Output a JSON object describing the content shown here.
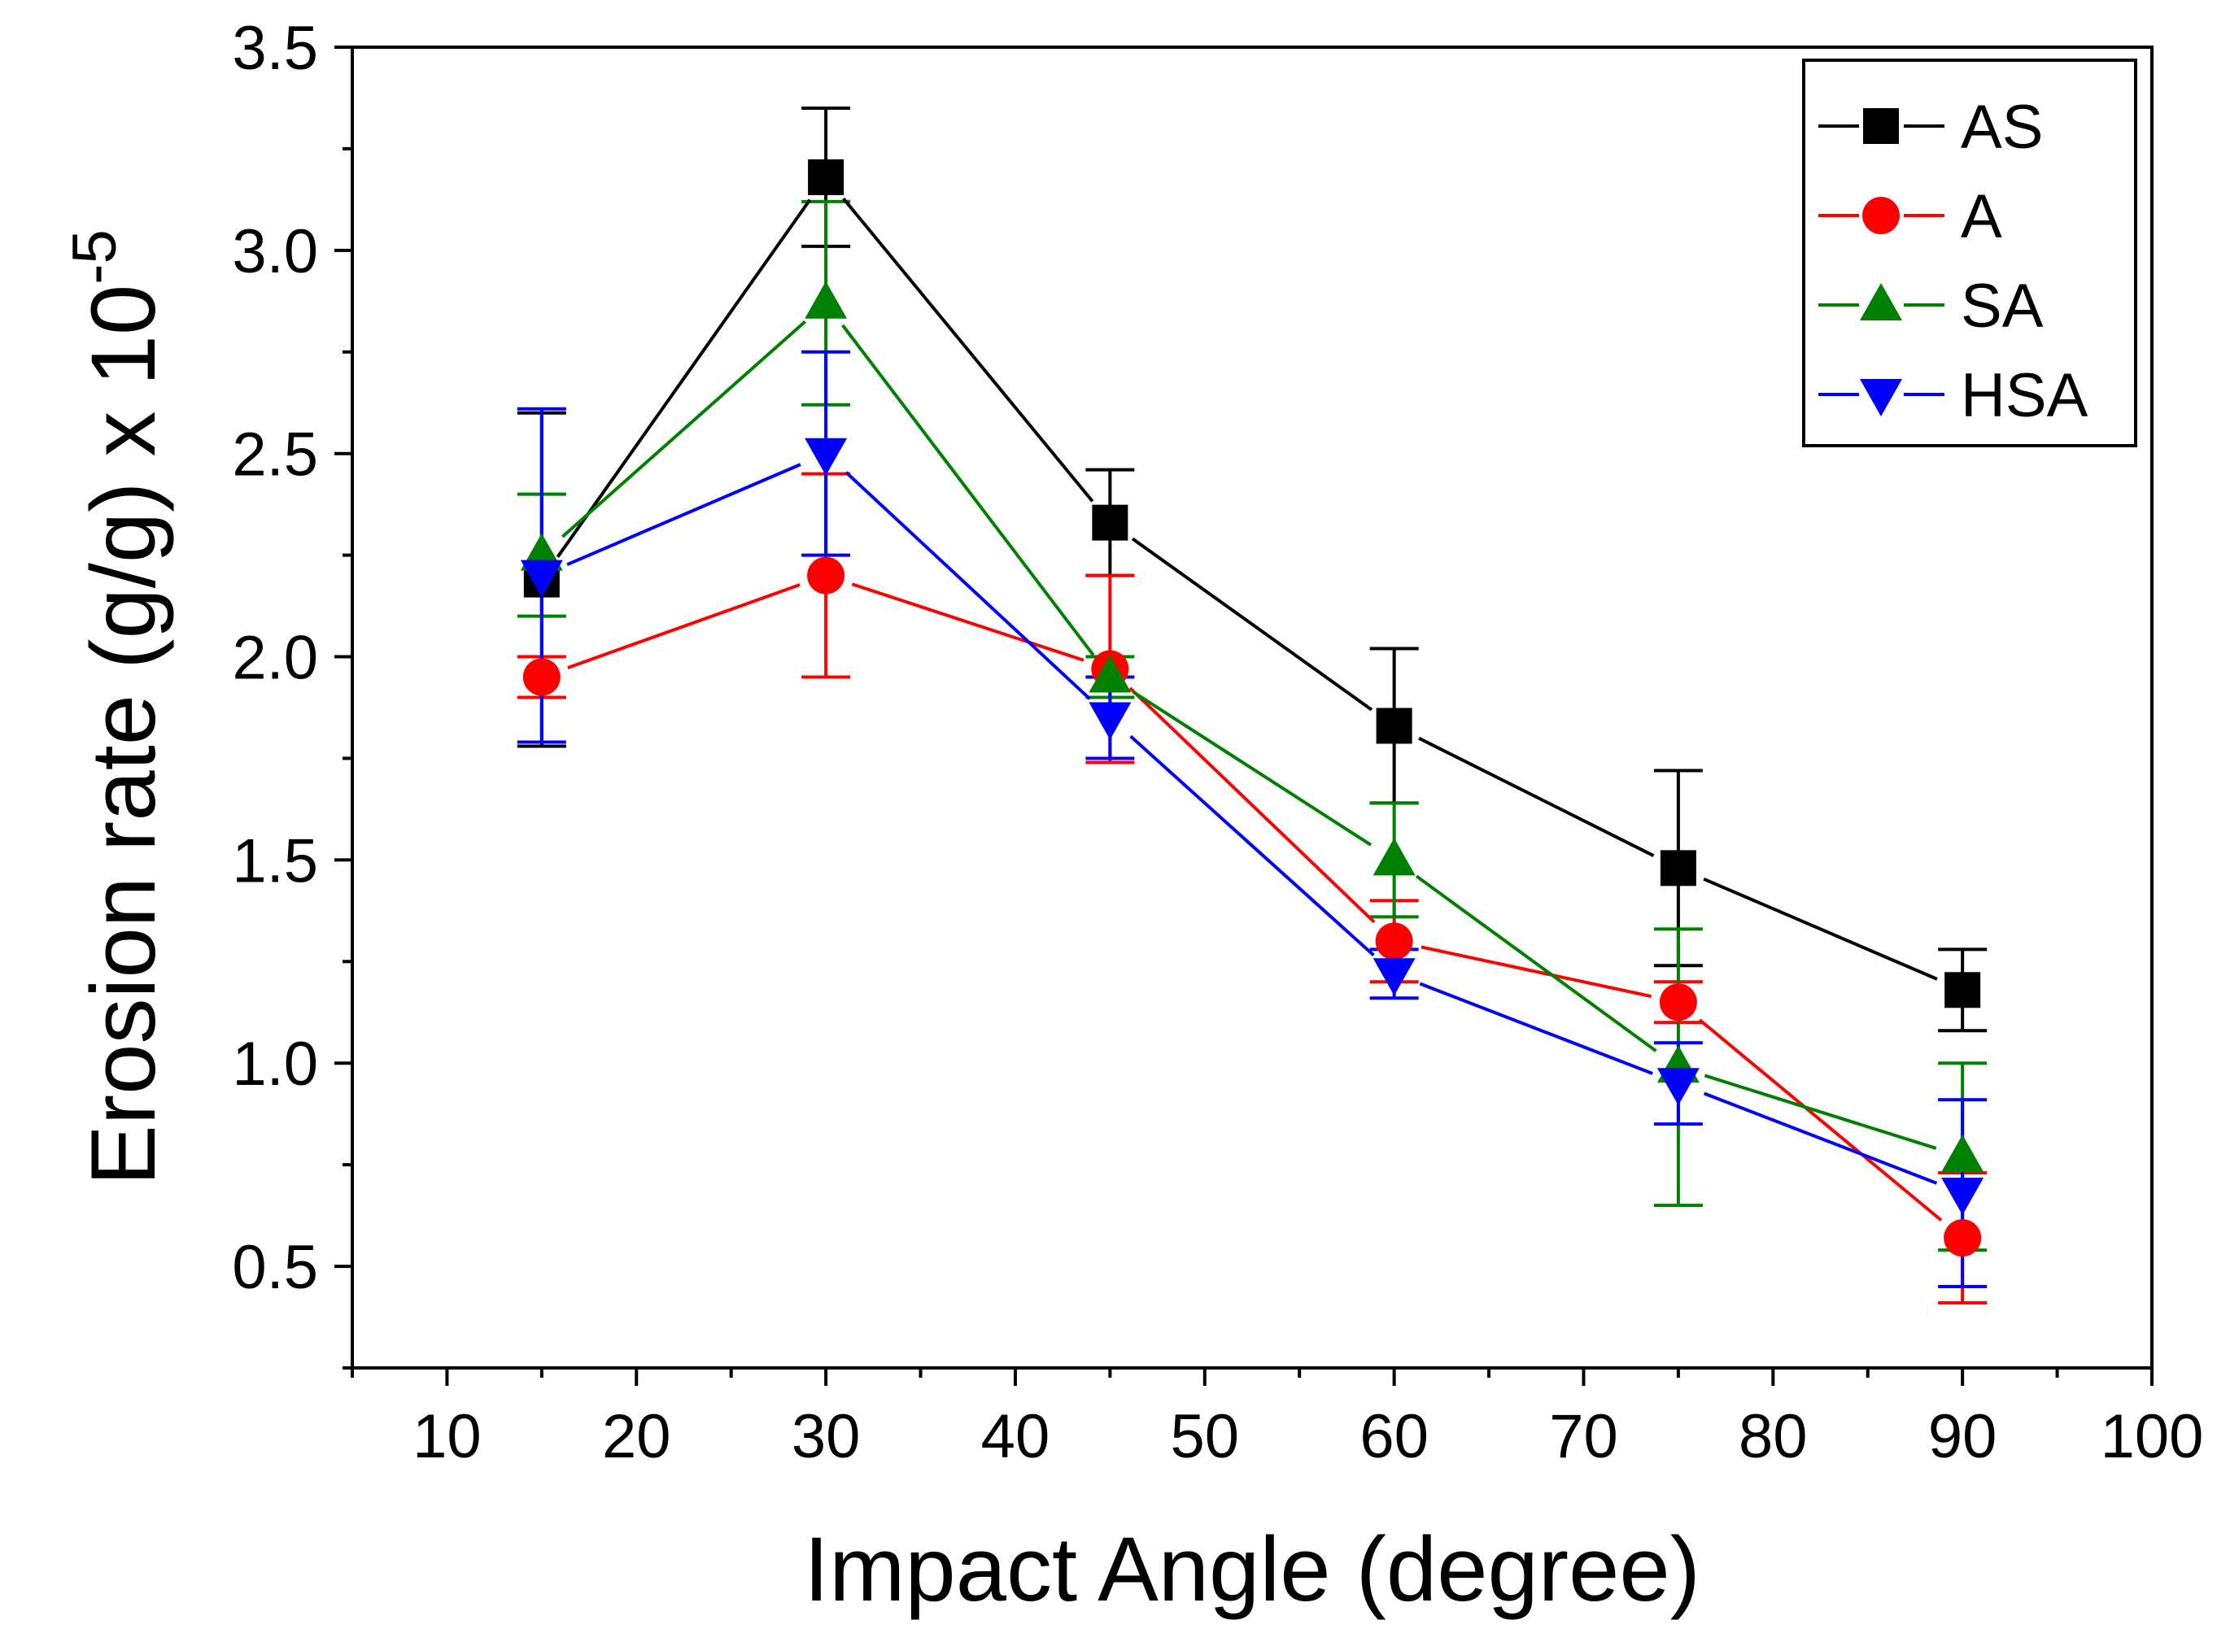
{
  "chart_data": {
    "type": "line",
    "title": "",
    "xlabel": "Impact Angle (degree)",
    "ylabel_main": "Erosion rate (g/g) x 10",
    "ylabel_exponent": "-5",
    "xlim": [
      5,
      100
    ],
    "ylim": [
      0.25,
      3.5
    ],
    "x_ticks": [
      10,
      20,
      30,
      40,
      50,
      60,
      70,
      80,
      90,
      100
    ],
    "x_tick_labels": [
      "10",
      "20",
      "30",
      "40",
      "50",
      "60",
      "70",
      "80",
      "90",
      "100"
    ],
    "y_ticks": [
      0.5,
      1.0,
      1.5,
      2.0,
      2.5,
      3.0,
      3.5
    ],
    "y_tick_labels": [
      "0.5",
      "1.0",
      "1.5",
      "2.0",
      "2.5",
      "3.0",
      "3.5"
    ],
    "grid": false,
    "legend_position": "top-right",
    "x": [
      15,
      30,
      45,
      60,
      75,
      90
    ],
    "series": [
      {
        "name": "AS",
        "color": "#000000",
        "marker": "square",
        "values": [
          2.19,
          3.18,
          2.33,
          1.83,
          1.48,
          1.18
        ],
        "errors": [
          0.41,
          0.17,
          0.13,
          0.19,
          0.24,
          0.1
        ]
      },
      {
        "name": "A",
        "color": "#ff0000",
        "marker": "circle",
        "values": [
          1.95,
          2.2,
          1.97,
          1.3,
          1.15,
          0.57
        ],
        "errors": [
          0.05,
          0.25,
          0.23,
          0.1,
          0.05,
          0.16
        ]
      },
      {
        "name": "SA",
        "color": "#008000",
        "marker": "triangle-up",
        "values": [
          2.25,
          2.87,
          1.95,
          1.5,
          0.99,
          0.77
        ],
        "errors": [
          0.15,
          0.25,
          0.05,
          0.14,
          0.34,
          0.23
        ]
      },
      {
        "name": "HSA",
        "color": "#0000ff",
        "marker": "triangle-down",
        "values": [
          2.2,
          2.5,
          1.85,
          1.22,
          0.95,
          0.68
        ],
        "errors": [
          0.41,
          0.25,
          0.1,
          0.06,
          0.1,
          0.23
        ]
      }
    ]
  }
}
